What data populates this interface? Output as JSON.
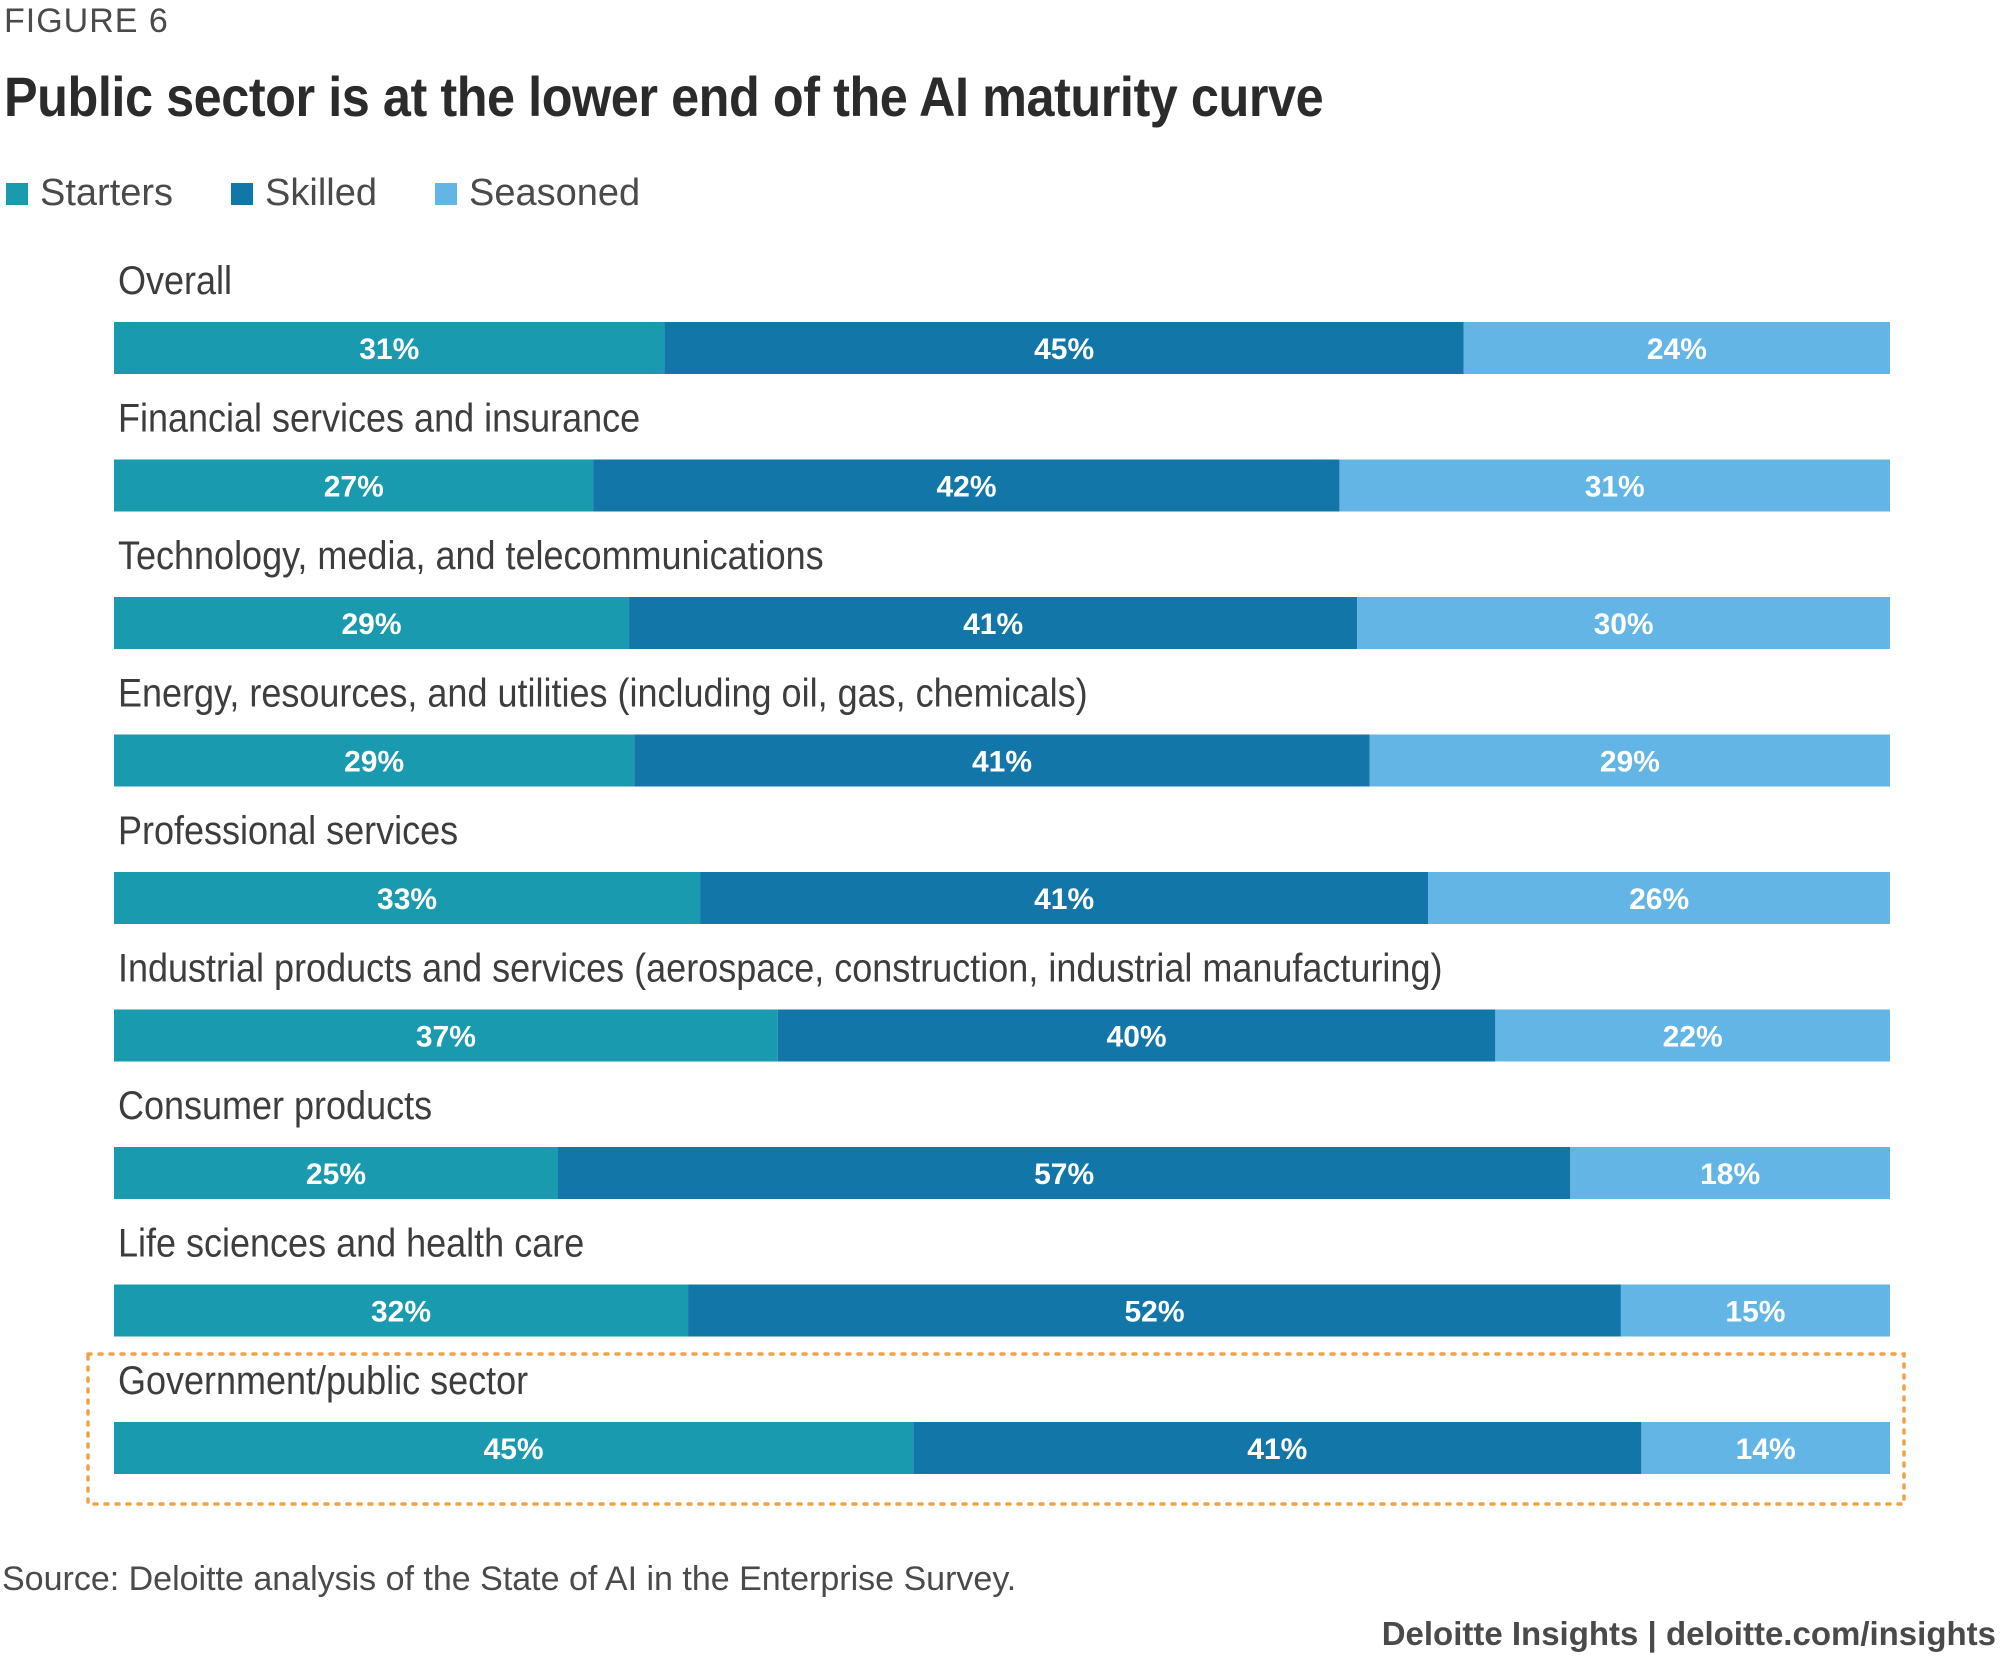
{
  "figure_label": "FIGURE 6",
  "source": "Source: Deloitte analysis of the State of AI in the Enterprise Survey.",
  "credit": "Deloitte Insights | deloitte.com/insights",
  "colors": {
    "starters": "#1a9aae",
    "skilled": "#1276a9",
    "seasoned": "#62b5e5",
    "highlight": "#f2a246"
  },
  "chart_data": {
    "type": "bar",
    "orientation": "horizontal",
    "stacked": true,
    "title": "Public sector is at the lower end of the AI maturity curve",
    "legend": [
      "Starters",
      "Skilled",
      "Seasoned"
    ],
    "highlight_category": "Government/public sector",
    "categories": [
      "Overall",
      "Financial services and insurance",
      "Technology, media, and telecommunications",
      "Energy, resources, and utilities (including oil, gas, chemicals)",
      "Professional services",
      "Industrial products and services (aerospace, construction, industrial manufacturing)",
      "Consumer products",
      "Life sciences and health care",
      "Government/public sector"
    ],
    "series": [
      {
        "name": "Starters",
        "values": [
          31,
          27,
          29,
          29,
          33,
          37,
          25,
          32,
          45
        ]
      },
      {
        "name": "Skilled",
        "values": [
          45,
          42,
          41,
          41,
          41,
          40,
          57,
          52,
          41
        ]
      },
      {
        "name": "Seasoned",
        "values": [
          24,
          31,
          30,
          29,
          26,
          22,
          18,
          15,
          14
        ]
      }
    ],
    "value_suffix": "%"
  }
}
